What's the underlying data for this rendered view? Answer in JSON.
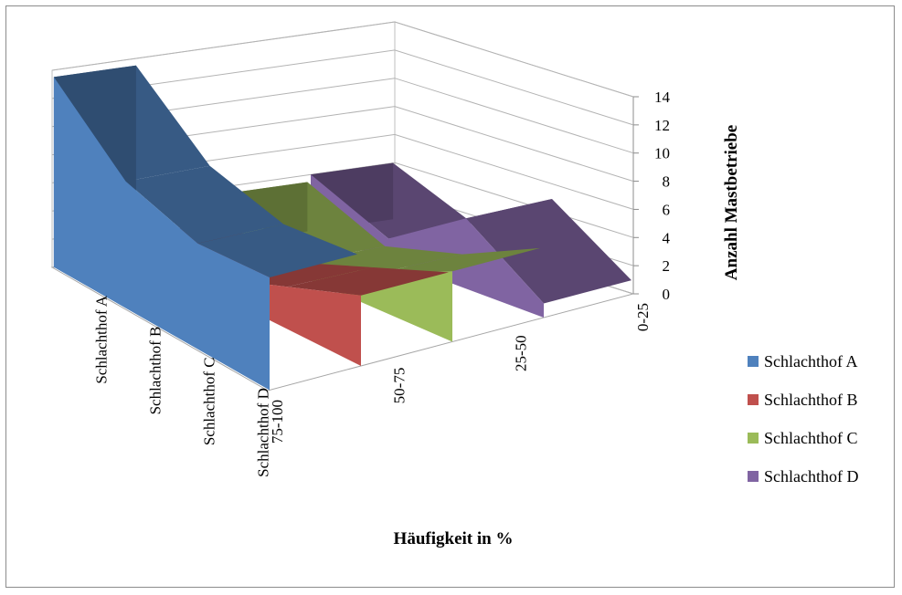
{
  "chart_data": {
    "type": "area",
    "style": "3d-ribbon",
    "categories": [
      "75-100",
      "50-75",
      "25-50",
      "0-25"
    ],
    "series": [
      {
        "name": "Schlachthof A",
        "values": [
          13.5,
          9,
          7.5,
          8
        ],
        "color": "#4f81bd"
      },
      {
        "name": "Schlachthof B",
        "values": [
          1.5,
          1,
          3,
          5
        ],
        "color": "#c0504d"
      },
      {
        "name": "Schlachthof C",
        "values": [
          3.5,
          1,
          2.5,
          5
        ],
        "color": "#9bbb59"
      },
      {
        "name": "Schlachthof D",
        "values": [
          4,
          1.5,
          5,
          1
        ],
        "color": "#8064a2"
      }
    ],
    "ylabel": "Anzahl Mastbetriebe",
    "xlabel": "Häufigkeit in %",
    "ylim": [
      0,
      14
    ],
    "yticks": [
      0,
      2,
      4,
      6,
      8,
      10,
      12,
      14
    ],
    "grid": true,
    "legend": "right"
  }
}
